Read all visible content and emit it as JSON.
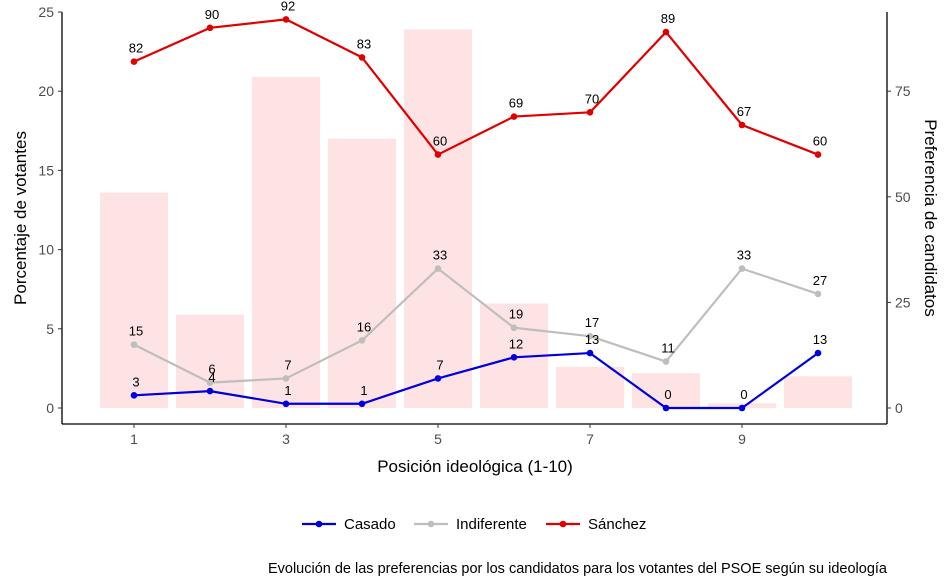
{
  "chart_data": {
    "type": "bar+line",
    "caption": "Evolución de las preferencias por los candidatos para los votantes del PSOE según su ideología",
    "xlabel": "Posición ideológica (1-10)",
    "ylabel_left": "Porcentaje de votantes",
    "ylabel_right": "Preferencia de candidatos",
    "x": [
      1,
      2,
      3,
      4,
      5,
      6,
      7,
      8,
      9,
      10
    ],
    "x_ticks": [
      "1",
      "3",
      "5",
      "7",
      "9"
    ],
    "x_tick_values": [
      1,
      3,
      5,
      7,
      9
    ],
    "ylim_left": [
      0,
      25
    ],
    "y_ticks_left": [
      "0",
      "5",
      "10",
      "15",
      "20",
      "25"
    ],
    "ylim_right": [
      0,
      93.75
    ],
    "y_ticks_right": [
      "0",
      "25",
      "50",
      "75"
    ],
    "bars": {
      "axis": "left",
      "values": [
        13.6,
        5.9,
        20.9,
        17.0,
        23.9,
        6.6,
        2.6,
        2.2,
        0.3,
        2.0
      ],
      "color": "#fde3e3"
    },
    "series": [
      {
        "name": "Casado",
        "color": "#0000dd",
        "values": [
          3,
          4,
          1,
          1,
          7,
          12,
          13,
          0,
          0,
          13
        ]
      },
      {
        "name": "Indiferente",
        "color": "#bebebe",
        "values": [
          15,
          6,
          7,
          16,
          33,
          19,
          17,
          11,
          33,
          27
        ]
      },
      {
        "name": "Sánchez",
        "color": "#e00000",
        "values": [
          82,
          90,
          92,
          83,
          60,
          69,
          70,
          89,
          67,
          60
        ]
      }
    ],
    "legend_position": "bottom",
    "grid": false
  }
}
